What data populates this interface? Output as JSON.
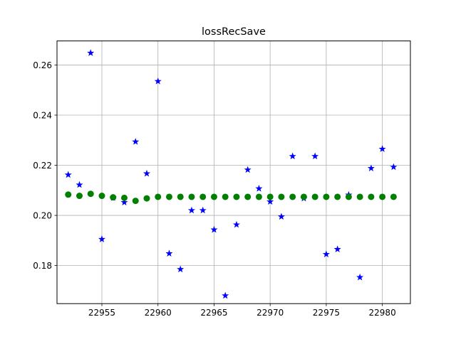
{
  "chart_data": {
    "type": "scatter",
    "title": "lossRecSave",
    "xlabel": "",
    "ylabel": "",
    "xlim": [
      22951.0,
      22982.5
    ],
    "ylim": [
      0.1648,
      0.2696
    ],
    "x_ticks": [
      22955,
      22960,
      22965,
      22970,
      22975,
      22980
    ],
    "x_tick_labels": [
      "22955",
      "22960",
      "22965",
      "22970",
      "22975",
      "22980"
    ],
    "y_ticks": [
      0.18,
      0.2,
      0.22,
      0.24,
      0.26
    ],
    "y_tick_labels": [
      "0.18",
      "0.20",
      "0.22",
      "0.24",
      "0.26"
    ],
    "grid": true,
    "legend": "none",
    "series": [
      {
        "marker": "star",
        "color": "#0000ff",
        "x": [
          22952,
          22953,
          22954,
          22955,
          22956,
          22957,
          22958,
          22959,
          22960,
          22961,
          22962,
          22963,
          22964,
          22965,
          22966,
          22967,
          22968,
          22969,
          22970,
          22971,
          22972,
          22973,
          22974,
          22975,
          22976,
          22977,
          22978,
          22979,
          22980,
          22981
        ],
        "y": [
          0.2162,
          0.2122,
          0.2648,
          0.1905,
          0.207,
          0.2052,
          0.2294,
          0.2167,
          0.2535,
          0.1848,
          0.1785,
          0.202,
          0.202,
          0.1943,
          0.168,
          0.1963,
          0.2182,
          0.2107,
          0.2055,
          0.1995,
          0.2236,
          0.2068,
          0.2236,
          0.1845,
          0.1865,
          0.2082,
          0.1753,
          0.2188,
          0.2265,
          0.2193
        ]
      },
      {
        "marker": "circle",
        "color": "#008000",
        "x": [
          22952,
          22953,
          22954,
          22955,
          22956,
          22957,
          22958,
          22959,
          22960,
          22961,
          22962,
          22963,
          22964,
          22965,
          22966,
          22967,
          22968,
          22969,
          22970,
          22971,
          22972,
          22973,
          22974,
          22975,
          22976,
          22977,
          22978,
          22979,
          22980,
          22981
        ],
        "y": [
          0.2083,
          0.2078,
          0.2086,
          0.2078,
          0.2072,
          0.207,
          0.2058,
          0.2068,
          0.2074,
          0.2074,
          0.2074,
          0.2074,
          0.2074,
          0.2074,
          0.2074,
          0.2074,
          0.2074,
          0.2074,
          0.2074,
          0.2074,
          0.2074,
          0.2074,
          0.2074,
          0.2074,
          0.2074,
          0.2074,
          0.2074,
          0.2074,
          0.2074,
          0.2074
        ]
      }
    ]
  }
}
